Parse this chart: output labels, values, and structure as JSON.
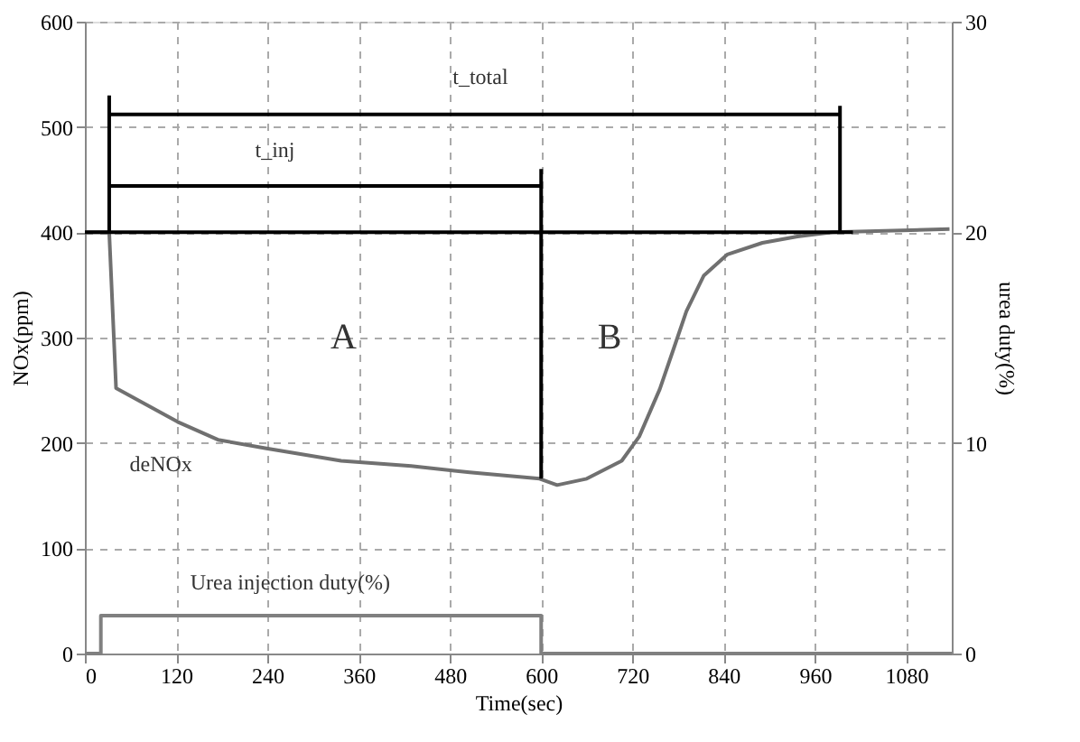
{
  "chart_data": {
    "type": "line",
    "xlabel": "Time(sec)",
    "ylabel": "NOx(ppm)",
    "y2label": "urea duty(%)",
    "xlim": [
      0,
      1140
    ],
    "xticks": [
      0,
      120,
      240,
      360,
      480,
      600,
      720,
      840,
      960,
      {
        "value": 1080,
        "label": "1080"
      }
    ],
    "ylim": [
      0,
      600
    ],
    "yticks": [
      0,
      100,
      200,
      300,
      400,
      500,
      600
    ],
    "y2lim": [
      0,
      30
    ],
    "y2ticks": [
      0,
      10,
      20,
      30
    ],
    "grid": true,
    "marker": "none",
    "line_style": "solid",
    "series": [
      {
        "color": "#707070",
        "x": [
          0,
          32,
          41,
          122,
          175,
          237,
          337,
          429,
          506,
          598,
          621,
          660,
          706,
          729,
          756,
          775,
          791,
          814,
          845,
          891,
          937,
          983,
          1137
        ],
        "values": [
          400,
          400,
          252,
          220,
          203,
          195,
          183,
          178,
          172,
          166,
          160,
          166,
          183,
          206,
          251,
          291,
          325,
          359,
          379,
          390,
          396,
          400,
          403
        ]
      },
      {
        "type": "step",
        "axis": "y2",
        "color": "#808080",
        "x": [
          0,
          21,
          600,
          1140
        ],
        "values": [
          0,
          1.8,
          0,
          0
        ]
      },
      {
        "color": "#000000",
        "x": [
          0,
          1010
        ],
        "values": [
          400,
          400
        ]
      },
      {
        "color": "#000000",
        "x": [
          600,
          600
        ],
        "values": [
          166,
          460
        ]
      },
      {
        "color": "#000000",
        "x": [
          32,
          993
        ],
        "values": [
          512,
          512
        ]
      },
      {
        "color": "#000000",
        "x": [
          32,
          600
        ],
        "values": [
          444,
          444
        ]
      },
      {
        "color": "#000000",
        "x": [
          32,
          32
        ],
        "values": [
          400,
          530
        ]
      },
      {
        "color": "#000000",
        "x": [
          993,
          993
        ],
        "values": [
          400,
          520
        ]
      }
    ],
    "annotations": [
      "t_total",
      "t_inj",
      "A",
      "B",
      "deNOx",
      "Urea injection duty(%)"
    ]
  }
}
